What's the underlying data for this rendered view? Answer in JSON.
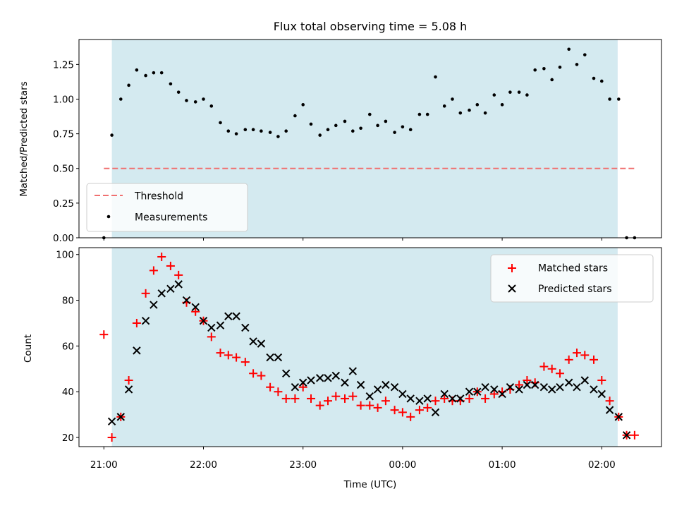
{
  "figure_title": "Flux total observing time = 5.08 h",
  "x_axis_label": "Time (UTC)",
  "x_tick_labels": [
    "21:00",
    "22:00",
    "23:00",
    "00:00",
    "01:00",
    "02:00"
  ],
  "colors": {
    "observing_window": "#d4eaf0",
    "threshold": "#f07070",
    "measurements": "#000000",
    "matched": "#ff0000",
    "predicted": "#000000"
  },
  "chart_data": [
    {
      "type": "scatter",
      "ylabel": "Matched/Predicted stars",
      "xlim": [
        20.75,
        26.6
      ],
      "ylim": [
        0,
        1.43
      ],
      "y_ticks": [
        0.0,
        0.25,
        0.5,
        0.75,
        1.0,
        1.25
      ],
      "y_tick_labels": [
        "0.00",
        "0.25",
        "0.50",
        "0.75",
        "1.00",
        "1.25"
      ],
      "observing_window": [
        21.08,
        26.16
      ],
      "threshold": {
        "name": "Threshold",
        "value": 0.5,
        "x_range": [
          21.0,
          26.33
        ]
      },
      "legend": [
        "Threshold",
        "Measurements"
      ],
      "legend_position": "lower left",
      "series": [
        {
          "name": "Measurements",
          "x": [
            21.0,
            21.08,
            21.17,
            21.25,
            21.33,
            21.42,
            21.5,
            21.58,
            21.67,
            21.75,
            21.83,
            21.92,
            22.0,
            22.08,
            22.17,
            22.25,
            22.33,
            22.42,
            22.5,
            22.58,
            22.67,
            22.75,
            22.83,
            22.92,
            23.0,
            23.08,
            23.17,
            23.25,
            23.33,
            23.42,
            23.5,
            23.58,
            23.67,
            23.75,
            23.83,
            23.92,
            24.0,
            24.08,
            24.17,
            24.25,
            24.33,
            24.42,
            24.5,
            24.58,
            24.67,
            24.75,
            24.83,
            24.92,
            25.0,
            25.08,
            25.17,
            25.25,
            25.33,
            25.42,
            25.5,
            25.58,
            25.67,
            25.75,
            25.83,
            25.92,
            26.0,
            26.08,
            26.17,
            26.25,
            26.33
          ],
          "y": [
            0.0,
            0.74,
            1.0,
            1.1,
            1.21,
            1.17,
            1.19,
            1.19,
            1.11,
            1.05,
            0.99,
            0.98,
            1.0,
            0.95,
            0.83,
            0.77,
            0.75,
            0.78,
            0.78,
            0.77,
            0.76,
            0.73,
            0.77,
            0.88,
            0.96,
            0.82,
            0.74,
            0.78,
            0.81,
            0.84,
            0.77,
            0.79,
            0.89,
            0.81,
            0.84,
            0.76,
            0.8,
            0.78,
            0.89,
            0.89,
            1.16,
            0.95,
            1.0,
            0.9,
            0.92,
            0.96,
            0.9,
            1.03,
            0.96,
            1.05,
            1.05,
            1.03,
            1.21,
            1.22,
            1.14,
            1.23,
            1.36,
            1.25,
            1.32,
            1.15,
            1.13,
            1.0,
            1.0,
            0.0,
            0.0
          ]
        }
      ]
    },
    {
      "type": "scatter",
      "ylabel": "Count",
      "xlim": [
        20.75,
        26.6
      ],
      "ylim": [
        16,
        103
      ],
      "y_ticks": [
        20,
        40,
        60,
        80,
        100
      ],
      "y_tick_labels": [
        "20",
        "40",
        "60",
        "80",
        "100"
      ],
      "observing_window": [
        21.08,
        26.16
      ],
      "legend": [
        "Matched stars",
        "Predicted stars"
      ],
      "legend_position": "upper right",
      "x": [
        21.0,
        21.08,
        21.17,
        21.25,
        21.33,
        21.42,
        21.5,
        21.58,
        21.67,
        21.75,
        21.83,
        21.92,
        22.0,
        22.08,
        22.17,
        22.25,
        22.33,
        22.42,
        22.5,
        22.58,
        22.67,
        22.75,
        22.83,
        22.92,
        23.0,
        23.08,
        23.17,
        23.25,
        23.33,
        23.42,
        23.5,
        23.58,
        23.67,
        23.75,
        23.83,
        23.92,
        24.0,
        24.08,
        24.17,
        24.25,
        24.33,
        24.42,
        24.5,
        24.58,
        24.67,
        24.75,
        24.83,
        24.92,
        25.0,
        25.08,
        25.17,
        25.25,
        25.33,
        25.42,
        25.5,
        25.58,
        25.67,
        25.75,
        25.83,
        25.92,
        26.0,
        26.08,
        26.17,
        26.25,
        26.33
      ],
      "series": [
        {
          "name": "Matched stars",
          "values": [
            65,
            20,
            29,
            45,
            70,
            83,
            93,
            99,
            95,
            91,
            79,
            75,
            71,
            64,
            57,
            56,
            55,
            53,
            48,
            47,
            42,
            40,
            37,
            37,
            42,
            37,
            34,
            36,
            38,
            37,
            38,
            34,
            34,
            33,
            36,
            32,
            31,
            29,
            32,
            33,
            36,
            37,
            36,
            36,
            37,
            40,
            37,
            39,
            40,
            41,
            43,
            45,
            44,
            51,
            50,
            48,
            54,
            57,
            56,
            54,
            45,
            36,
            29,
            21,
            21
          ]
        },
        {
          "name": "Predicted stars",
          "values": [
            null,
            27,
            29,
            41,
            58,
            71,
            78,
            83,
            85,
            87,
            80,
            77,
            71,
            68,
            69,
            73,
            73,
            68,
            62,
            61,
            55,
            55,
            48,
            42,
            44,
            45,
            46,
            46,
            47,
            44,
            49,
            43,
            38,
            41,
            43,
            42,
            39,
            37,
            36,
            37,
            31,
            39,
            37,
            37,
            40,
            40,
            42,
            41,
            39,
            42,
            41,
            43,
            43,
            42,
            41,
            42,
            44,
            42,
            45,
            41,
            39,
            32,
            29,
            21,
            null
          ]
        }
      ]
    }
  ]
}
